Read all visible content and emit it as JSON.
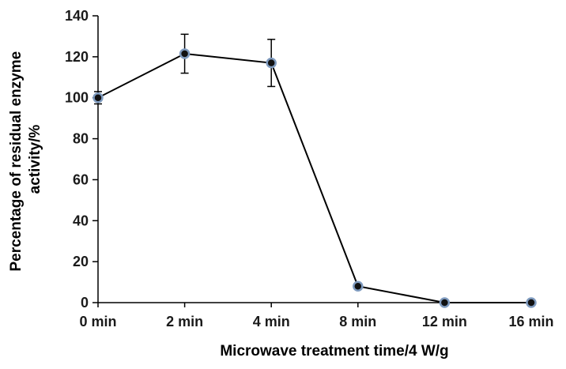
{
  "chart_data": {
    "type": "line",
    "title": "",
    "xlabel": "Microwave treatment time/4 W/g",
    "ylabel": "Percentage of residual enzyme activity/%",
    "categories": [
      "0 min",
      "2 min",
      "4 min",
      "8 min",
      "12 min",
      "16 min"
    ],
    "series": [
      {
        "values": [
          100,
          121.5,
          117,
          8,
          0,
          0
        ],
        "error": [
          3,
          9.5,
          11.5,
          0,
          0,
          0
        ]
      }
    ],
    "ylim": [
      0,
      140
    ],
    "yticks": [
      "0",
      "20",
      "40",
      "60",
      "80",
      "100",
      "120",
      "140"
    ],
    "grid": false,
    "legend": "none",
    "colors": {
      "line": "#000000",
      "marker_fill": "#111111",
      "marker_edge": "#7f9bbf"
    }
  }
}
